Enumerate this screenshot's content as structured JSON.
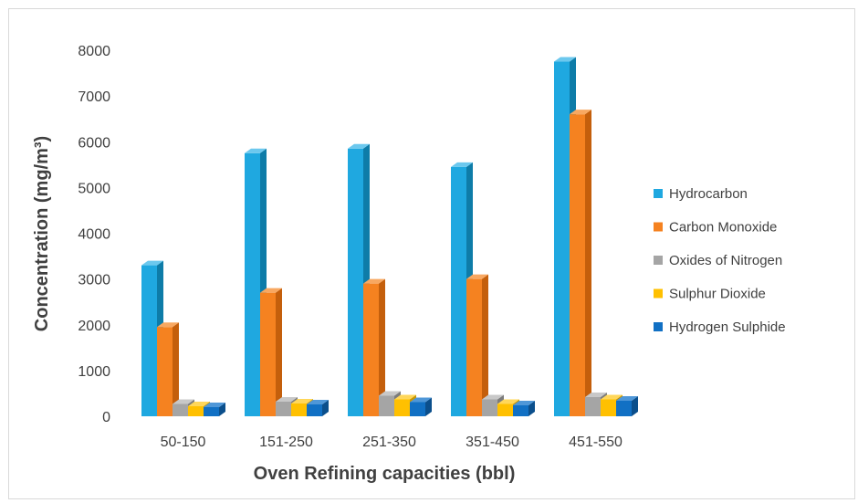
{
  "chart_data": {
    "type": "bar",
    "title": "",
    "xlabel": "Oven Refining capacities (bbl)",
    "ylabel": "Concentration (mg/m³)",
    "ylim": [
      0,
      8000
    ],
    "yticks": [
      "0",
      "1000",
      "2000",
      "3000",
      "4000",
      "5000",
      "6000",
      "7000",
      "8000"
    ],
    "categories": [
      "50-150",
      "151-250",
      "251-350",
      "351-450",
      "451-550"
    ],
    "grid": false,
    "legend_position": "right",
    "series": [
      {
        "name": "Hydrocarbon",
        "values": [
          3300,
          5750,
          5850,
          5450,
          7750
        ],
        "color": "#1fa8e0",
        "side": "#0e7ca8",
        "top": "#6cc8ee"
      },
      {
        "name": "Carbon Monoxide",
        "values": [
          1950,
          2700,
          2900,
          3000,
          6600
        ],
        "color": "#f58220",
        "side": "#c45f0c",
        "top": "#f8a861"
      },
      {
        "name": "Oxides of Nitrogen",
        "values": [
          270,
          320,
          450,
          370,
          420
        ],
        "color": "#a5a5a5",
        "side": "#7c7c7c",
        "top": "#c8c8c8"
      },
      {
        "name": "Sulphur Dioxide",
        "values": [
          220,
          280,
          370,
          270,
          370
        ],
        "color": "#ffc000",
        "side": "#c99600",
        "top": "#ffd75a"
      },
      {
        "name": "Hydrogen Sulphide",
        "values": [
          200,
          260,
          310,
          240,
          340
        ],
        "color": "#1170c4",
        "side": "#0b4f8c",
        "top": "#4f97d8"
      }
    ]
  }
}
